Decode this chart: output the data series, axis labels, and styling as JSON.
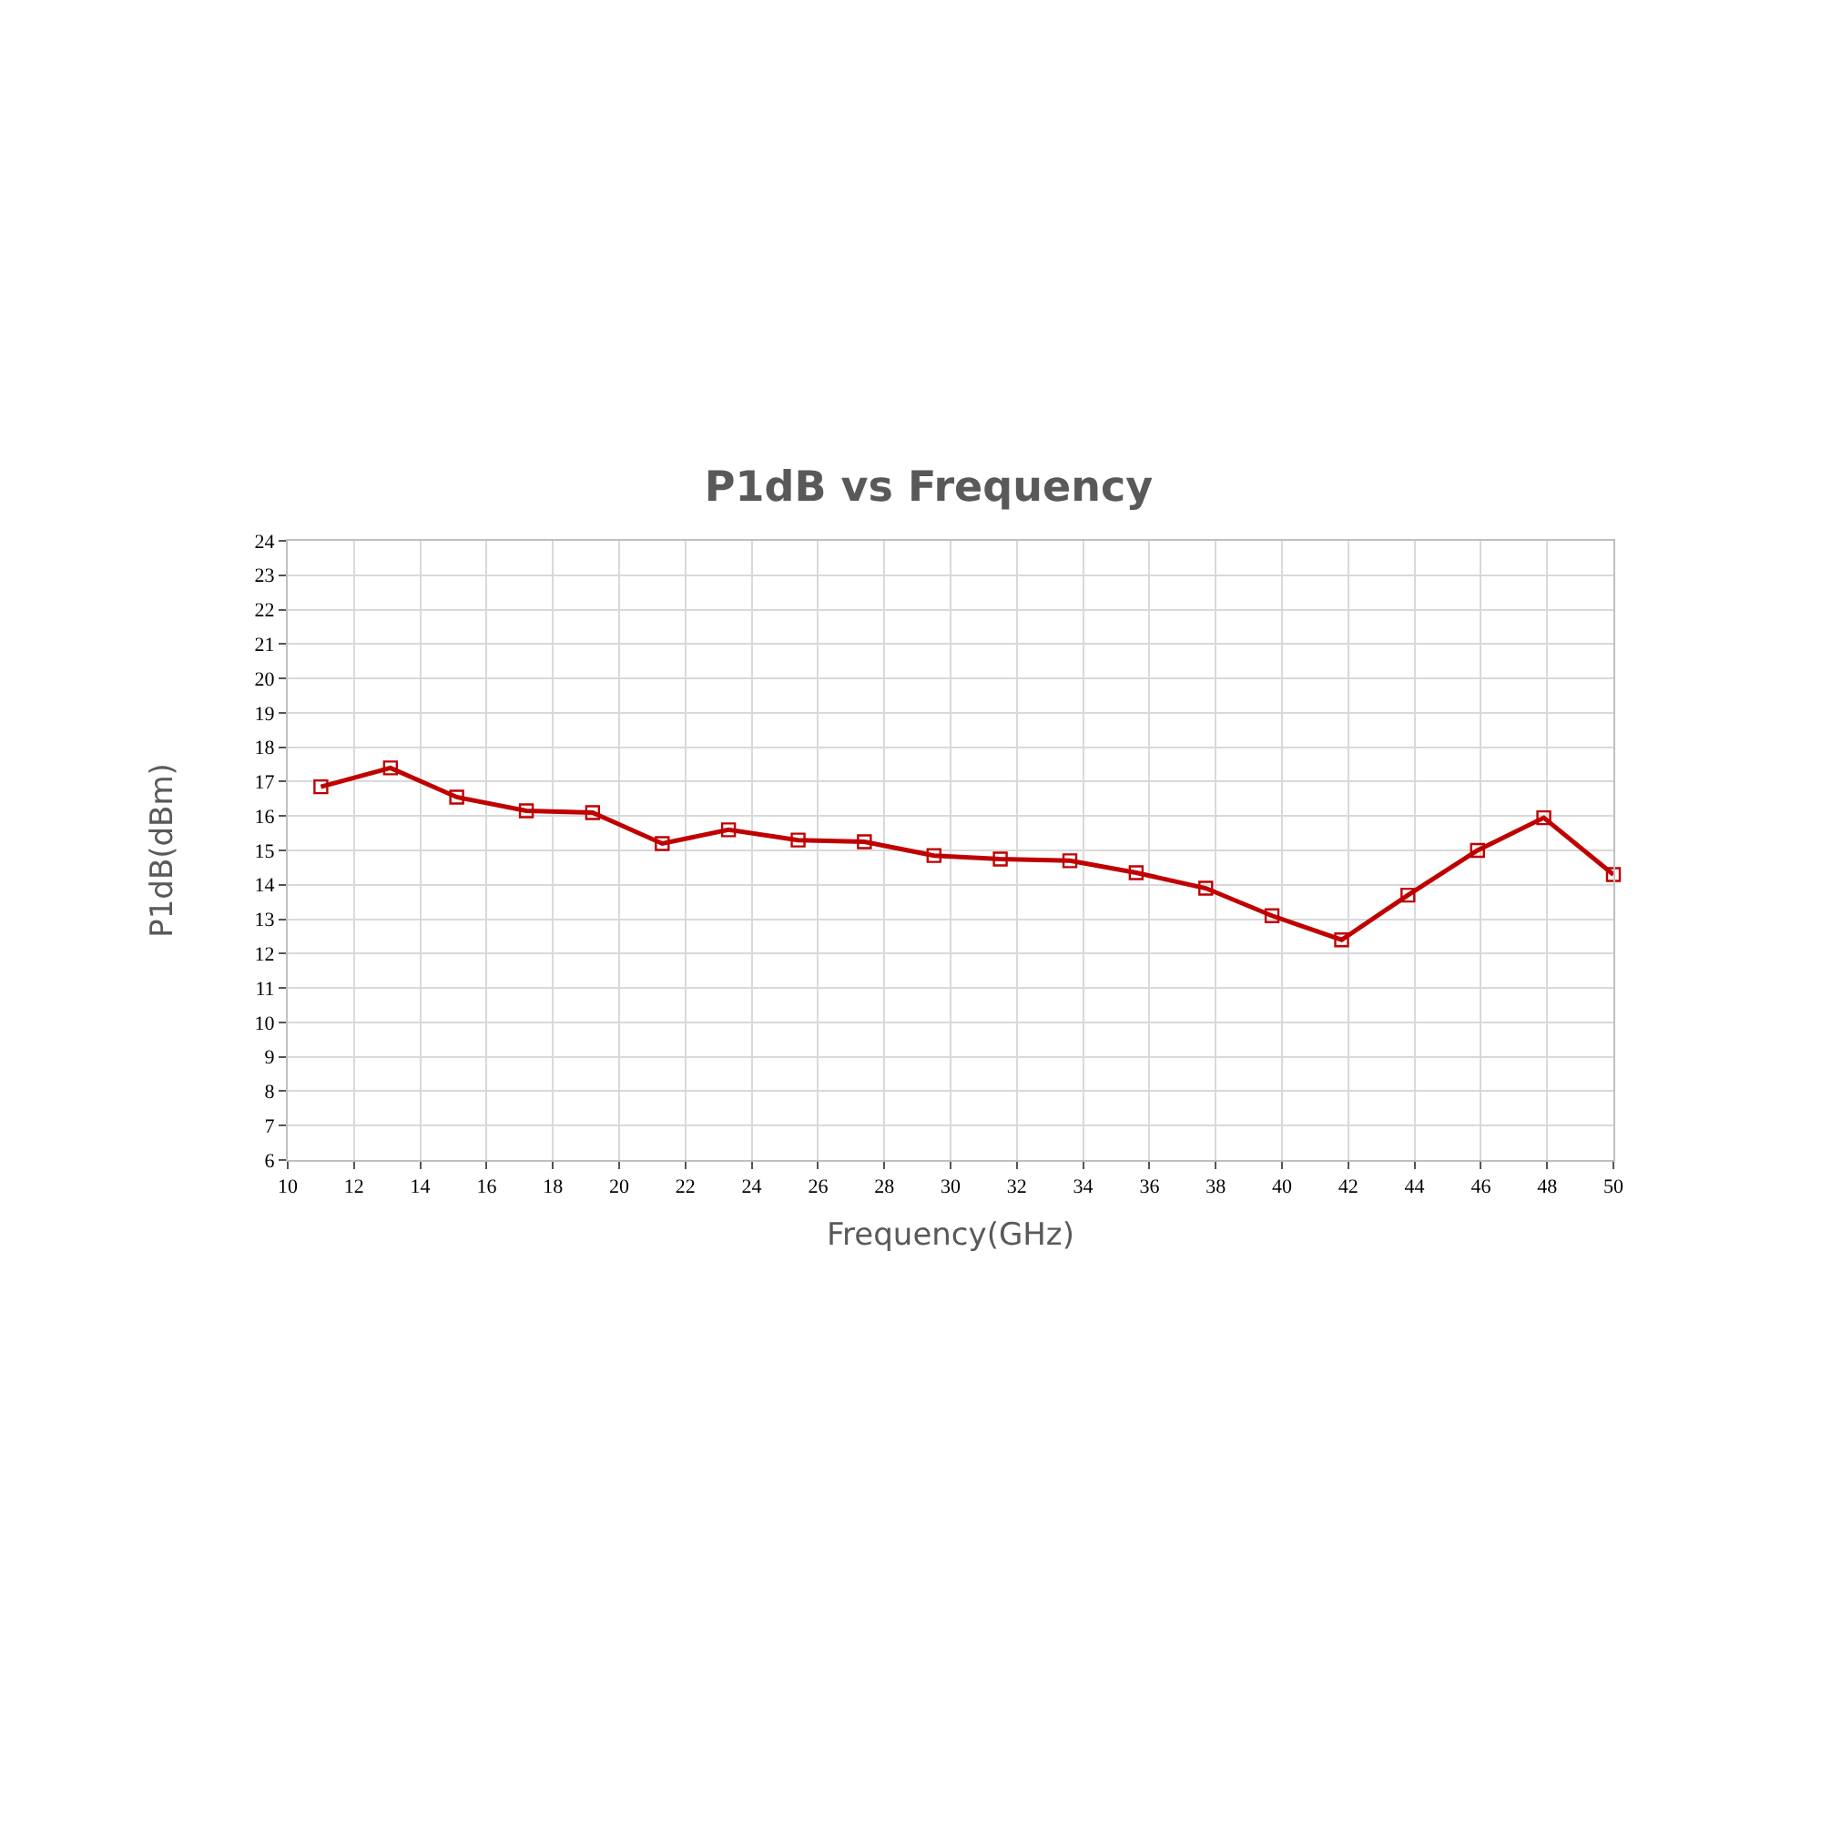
{
  "chart_data": {
    "type": "line",
    "title": "P1dB vs Frequency",
    "xlabel": "Frequency(GHz)",
    "ylabel": "P1dB(dBm)",
    "x": [
      11.0,
      13.1,
      15.1,
      17.2,
      19.2,
      21.3,
      23.3,
      25.4,
      27.4,
      29.5,
      31.5,
      33.6,
      35.6,
      37.7,
      39.7,
      41.8,
      43.8,
      45.9,
      47.9,
      50.0
    ],
    "series": [
      {
        "color": "#c00000",
        "values": [
          16.85,
          17.4,
          16.55,
          16.15,
          16.1,
          15.2,
          15.6,
          15.3,
          15.25,
          14.85,
          14.75,
          14.7,
          14.35,
          13.9,
          13.1,
          12.4,
          13.7,
          15.0,
          15.95,
          14.3
        ]
      }
    ],
    "xlim": [
      10,
      50
    ],
    "xticks": [
      10,
      12,
      14,
      16,
      18,
      20,
      22,
      24,
      26,
      28,
      30,
      32,
      34,
      36,
      38,
      40,
      42,
      44,
      46,
      48,
      50
    ],
    "ylim": [
      6,
      24
    ],
    "yticks": [
      6,
      7,
      8,
      9,
      10,
      11,
      12,
      13,
      14,
      15,
      16,
      17,
      18,
      19,
      20,
      21,
      22,
      23,
      24
    ],
    "grid": true,
    "marker": "square",
    "line_style": "solid"
  }
}
